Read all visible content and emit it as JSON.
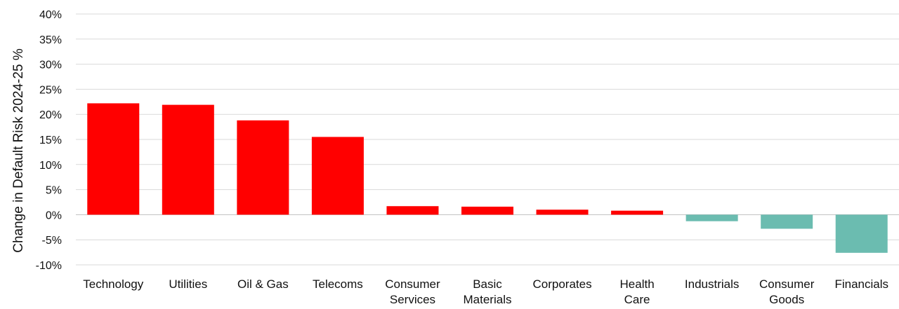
{
  "chart_data": {
    "type": "bar",
    "title": "",
    "xlabel": "",
    "ylabel": "Change in Default Risk 2024-25 %",
    "categories": [
      [
        "Technology"
      ],
      [
        "Utilities"
      ],
      [
        "Oil & Gas"
      ],
      [
        "Telecoms"
      ],
      [
        "Consumer",
        "Services"
      ],
      [
        "Basic",
        "Materials"
      ],
      [
        "Corporates"
      ],
      [
        "Health",
        "Care"
      ],
      [
        "Industrials"
      ],
      [
        "Consumer",
        "Goods"
      ],
      [
        "Financials"
      ]
    ],
    "values": [
      22.2,
      21.9,
      18.8,
      15.5,
      1.7,
      1.6,
      1.0,
      0.8,
      -1.3,
      -2.8,
      -7.6
    ],
    "ylim": [
      -10,
      40
    ],
    "yticks": [
      -10,
      -5,
      0,
      5,
      10,
      15,
      20,
      25,
      30,
      35,
      40
    ],
    "ytick_format": "%",
    "grid": true,
    "colors": {
      "positive": "#ff0000",
      "negative": "#6bbcb0",
      "grid": "#d9d9d9"
    }
  }
}
